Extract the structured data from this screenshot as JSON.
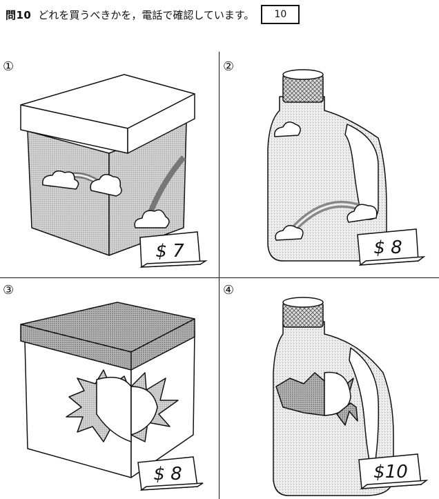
{
  "question": {
    "label": "問10",
    "text": "どれを買うべきかを，電話で確認しています。",
    "answer_box": "10"
  },
  "options": [
    {
      "marker": "①",
      "item": "box with rainbow and clouds",
      "price": "$ 7"
    },
    {
      "marker": "②",
      "item": "bottle with rainbow and clouds",
      "price": "$ 8"
    },
    {
      "marker": "③",
      "item": "box with sun",
      "price": "$ 8"
    },
    {
      "marker": "④",
      "item": "bottle with sun",
      "price": "$10"
    }
  ]
}
